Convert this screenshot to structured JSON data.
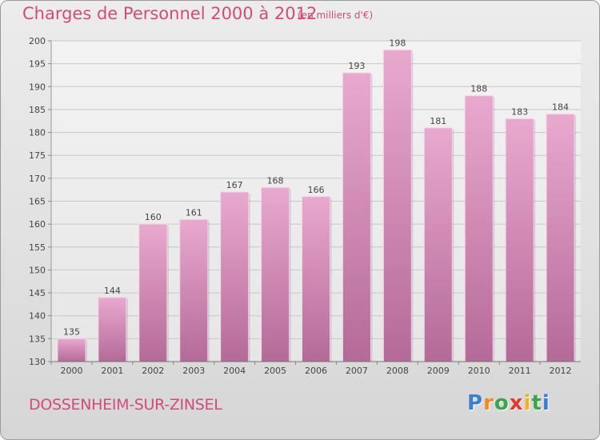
{
  "header": {
    "title": "Charges de Personnel 2000 à 2012",
    "unit": "(en milliers d'€)"
  },
  "footer": {
    "commune": "DOSSENHEIM-SUR-ZINSEL",
    "logo_letters": [
      {
        "ch": "P",
        "color": "#3a7fd0"
      },
      {
        "ch": "r",
        "color": "#f08a1c"
      },
      {
        "ch": "o",
        "color": "#3aa54a"
      },
      {
        "ch": "x",
        "color": "#e23a2f"
      },
      {
        "ch": "i",
        "color": "#f2b31a"
      },
      {
        "ch": "t",
        "color": "#3aa54a"
      },
      {
        "ch": "i",
        "color": "#3a7fd0"
      }
    ]
  },
  "colors": {
    "accent": "#d14b7c",
    "bar_top": "#e9a9cf",
    "bar_bottom": "#b46a98"
  },
  "chart_data": {
    "type": "bar",
    "title": "Charges de Personnel 2000 à 2012",
    "subtitle": "(en milliers d'€)",
    "categories": [
      "2000",
      "2001",
      "2002",
      "2003",
      "2004",
      "2005",
      "2006",
      "2007",
      "2008",
      "2009",
      "2010",
      "2011",
      "2012"
    ],
    "values": [
      135,
      144,
      160,
      161,
      167,
      168,
      166,
      193,
      198,
      181,
      188,
      183,
      184
    ],
    "ylim": [
      130,
      200
    ],
    "yticks": [
      130,
      135,
      140,
      145,
      150,
      155,
      160,
      165,
      170,
      175,
      180,
      185,
      190,
      195,
      200
    ],
    "grid": true,
    "xlabel": "",
    "ylabel": ""
  }
}
